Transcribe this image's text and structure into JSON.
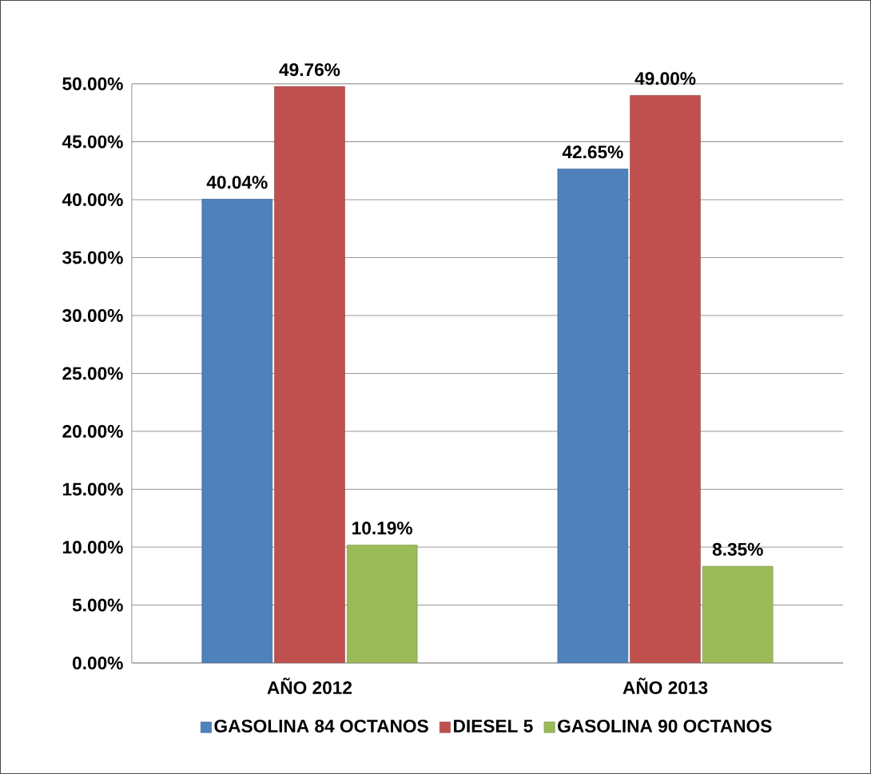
{
  "chart_data": {
    "type": "bar",
    "categories": [
      "AÑO 2012",
      "AÑO 2013"
    ],
    "series": [
      {
        "name": "GASOLINA 84 OCTANOS",
        "color": "#4f81bd",
        "values": [
          40.04,
          42.65
        ],
        "value_labels": [
          "40.04%",
          "42.65%"
        ]
      },
      {
        "name": "DIESEL 5",
        "color": "#c0504d",
        "values": [
          49.76,
          49.0
        ],
        "value_labels": [
          "49.76%",
          "49.00%"
        ]
      },
      {
        "name": "GASOLINA 90 OCTANOS",
        "color": "#9bbb59",
        "values": [
          10.19,
          8.35
        ],
        "value_labels": [
          "10.19%",
          "8.35%"
        ]
      }
    ],
    "ylim": [
      0,
      50
    ],
    "yticks": [
      {
        "value": 0,
        "label": "0.00%"
      },
      {
        "value": 5,
        "label": "5.00%"
      },
      {
        "value": 10,
        "label": "10.00%"
      },
      {
        "value": 15,
        "label": "15.00%"
      },
      {
        "value": 20,
        "label": "20.00%"
      },
      {
        "value": 25,
        "label": "25.00%"
      },
      {
        "value": 30,
        "label": "30.00%"
      },
      {
        "value": 35,
        "label": "35.00%"
      },
      {
        "value": 40,
        "label": "40.00%"
      },
      {
        "value": 45,
        "label": "45.00%"
      },
      {
        "value": 50,
        "label": "50.00%"
      }
    ],
    "grid": "y",
    "legend": "bottom"
  }
}
